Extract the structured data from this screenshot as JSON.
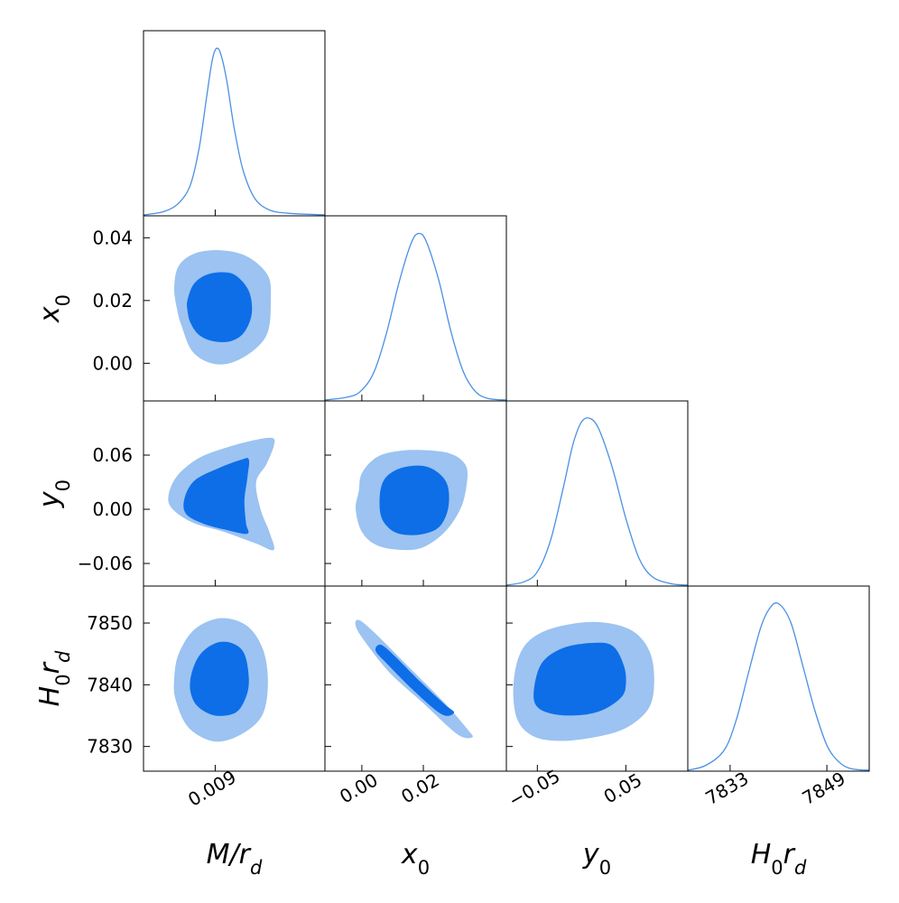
{
  "chart_data": {
    "type": "corner",
    "colors": {
      "line": "#4a90e2",
      "inner": "#0d6ee8",
      "outer": "#9cc3f1"
    },
    "params": [
      "M/r_d",
      "x_0",
      "y_0",
      "H_0 r_d"
    ],
    "axis_labels": {
      "x": [
        {
          "base": "M/r",
          "sub": "d",
          "tail": ""
        },
        {
          "base": "x",
          "sub": "0",
          "tail": ""
        },
        {
          "base": "y",
          "sub": "0",
          "tail": ""
        },
        {
          "base": "H",
          "sub": "0",
          "mid": "r",
          "sub2": "d"
        }
      ],
      "y": [
        null,
        {
          "base": "x",
          "sub": "0"
        },
        {
          "base": "y",
          "sub": "0"
        },
        {
          "base": "H",
          "sub": "0",
          "mid": "r",
          "sub2": "d"
        }
      ]
    },
    "ranges": [
      [
        0.0041,
        0.0165
      ],
      [
        -0.012,
        0.047
      ],
      [
        -0.085,
        0.12
      ],
      [
        7826,
        7856
      ]
    ],
    "x_ticks": [
      {
        "values": [
          0.009
        ],
        "labels": [
          "0.009"
        ]
      },
      {
        "values": [
          0.0,
          0.02
        ],
        "labels": [
          "0.00",
          "0.02"
        ]
      },
      {
        "values": [
          -0.05,
          0.05
        ],
        "labels": [
          "−0.05",
          "0.05"
        ]
      },
      {
        "values": [
          7833,
          7849
        ],
        "labels": [
          "7833",
          "7849"
        ]
      }
    ],
    "y_ticks": [
      null,
      {
        "values": [
          0.0,
          0.02,
          0.04
        ],
        "labels": [
          "0.00",
          "0.02",
          "0.04"
        ]
      },
      {
        "values": [
          -0.06,
          0.0,
          0.06
        ],
        "labels": [
          "−0.06",
          "0.00",
          "0.06"
        ]
      },
      {
        "values": [
          7830,
          7840,
          7850
        ],
        "labels": [
          "7830",
          "7840",
          "7850"
        ]
      }
    ],
    "marginals": [
      {
        "param": "M/r_d",
        "x": [
          0.0041,
          0.0055,
          0.0065,
          0.0073,
          0.0079,
          0.0084,
          0.0088,
          0.0091,
          0.0094,
          0.0098,
          0.0103,
          0.0109,
          0.0117,
          0.0127,
          0.014,
          0.0165
        ],
        "y": [
          0.0,
          0.02,
          0.07,
          0.18,
          0.4,
          0.7,
          0.93,
          1.0,
          0.96,
          0.8,
          0.52,
          0.27,
          0.1,
          0.03,
          0.01,
          0.0
        ]
      },
      {
        "param": "x_0",
        "x": [
          -0.012,
          -0.004,
          0.0,
          0.004,
          0.008,
          0.012,
          0.016,
          0.0185,
          0.021,
          0.025,
          0.029,
          0.033,
          0.037,
          0.041,
          0.047
        ],
        "y": [
          0.0,
          0.02,
          0.06,
          0.17,
          0.4,
          0.7,
          0.94,
          1.0,
          0.95,
          0.72,
          0.41,
          0.17,
          0.05,
          0.01,
          0.0
        ]
      },
      {
        "param": "y_0",
        "x": [
          -0.085,
          -0.065,
          -0.05,
          -0.035,
          -0.02,
          -0.01,
          0.0,
          0.01,
          0.02,
          0.035,
          0.05,
          0.065,
          0.08,
          0.1,
          0.12
        ],
        "y": [
          0.0,
          0.02,
          0.08,
          0.27,
          0.6,
          0.84,
          0.98,
          1.0,
          0.93,
          0.7,
          0.4,
          0.16,
          0.05,
          0.01,
          0.0
        ]
      },
      {
        "param": "H_0 r_d",
        "x": [
          7826,
          7829,
          7832,
          7834,
          7836,
          7838,
          7839.5,
          7841,
          7843,
          7845,
          7847,
          7849,
          7851,
          7853,
          7856
        ],
        "y": [
          0.0,
          0.03,
          0.12,
          0.3,
          0.58,
          0.85,
          0.97,
          1.0,
          0.89,
          0.63,
          0.36,
          0.15,
          0.05,
          0.01,
          0.0
        ]
      }
    ],
    "contours": [
      {
        "x_param": "M/r_d",
        "y_param": "x_0",
        "outer": [
          [
            0.0067,
            0.012
          ],
          [
            0.0074,
            0.004
          ],
          [
            0.0086,
            0.0002
          ],
          [
            0.01,
            0.0
          ],
          [
            0.0116,
            0.004
          ],
          [
            0.0126,
            0.01
          ],
          [
            0.0128,
            0.02
          ],
          [
            0.0126,
            0.028
          ],
          [
            0.0112,
            0.034
          ],
          [
            0.0094,
            0.036
          ],
          [
            0.0076,
            0.035
          ],
          [
            0.0065,
            0.031
          ],
          [
            0.0062,
            0.024
          ],
          [
            0.0064,
            0.017
          ]
        ],
        "inner": [
          [
            0.0073,
            0.013
          ],
          [
            0.0079,
            0.009
          ],
          [
            0.0089,
            0.007
          ],
          [
            0.0101,
            0.0071
          ],
          [
            0.011,
            0.01
          ],
          [
            0.0115,
            0.016
          ],
          [
            0.0113,
            0.023
          ],
          [
            0.0104,
            0.028
          ],
          [
            0.0094,
            0.029
          ],
          [
            0.0083,
            0.028
          ],
          [
            0.0075,
            0.025
          ],
          [
            0.0071,
            0.02
          ],
          [
            0.0071,
            0.017
          ]
        ]
      },
      {
        "x_param": "M/r_d",
        "y_param": "y_0",
        "outer": [
          [
            0.0064,
            0.037
          ],
          [
            0.0078,
            0.056
          ],
          [
            0.0095,
            0.067
          ],
          [
            0.0115,
            0.076
          ],
          [
            0.0129,
            0.079
          ],
          [
            0.013,
            0.07
          ],
          [
            0.0125,
            0.05
          ],
          [
            0.0118,
            0.03
          ],
          [
            0.0121,
            0.0
          ],
          [
            0.0127,
            -0.025
          ],
          [
            0.013,
            -0.045
          ],
          [
            0.0118,
            -0.038
          ],
          [
            0.0096,
            -0.025
          ],
          [
            0.0075,
            -0.015
          ],
          [
            0.0061,
            0.0
          ],
          [
            0.0058,
            0.015
          ]
        ],
        "inner": [
          [
            0.0076,
            0.032
          ],
          [
            0.0093,
            0.046
          ],
          [
            0.0108,
            0.055
          ],
          [
            0.0113,
            0.055
          ],
          [
            0.0112,
            0.035
          ],
          [
            0.011,
            0.01
          ],
          [
            0.0111,
            -0.015
          ],
          [
            0.0112,
            -0.027
          ],
          [
            0.0098,
            -0.023
          ],
          [
            0.0082,
            -0.016
          ],
          [
            0.007,
            -0.005
          ],
          [
            0.0069,
            0.012
          ]
        ]
      },
      {
        "x_param": "M/r_d",
        "y_param": "H_0 r_d",
        "outer": [
          [
            0.0063,
            7837.5
          ],
          [
            0.0072,
            7833
          ],
          [
            0.009,
            7830.8
          ],
          [
            0.0108,
            7832
          ],
          [
            0.0122,
            7835
          ],
          [
            0.0126,
            7840
          ],
          [
            0.0123,
            7845.5
          ],
          [
            0.0112,
            7849.5
          ],
          [
            0.0094,
            7850.8
          ],
          [
            0.0076,
            7849
          ],
          [
            0.0065,
            7845
          ],
          [
            0.0062,
            7841
          ]
        ],
        "inner": [
          [
            0.0073,
            7839
          ],
          [
            0.0078,
            7836.5
          ],
          [
            0.009,
            7835
          ],
          [
            0.0104,
            7835.5
          ],
          [
            0.0111,
            7838
          ],
          [
            0.0113,
            7841
          ],
          [
            0.011,
            7845
          ],
          [
            0.0102,
            7846.7
          ],
          [
            0.0091,
            7846.8
          ],
          [
            0.008,
            7845
          ],
          [
            0.0074,
            7842
          ]
        ]
      },
      {
        "x_param": "x_0",
        "y_param": "y_0",
        "outer": [
          [
            0.0,
            0.04
          ],
          [
            0.005,
            0.058
          ],
          [
            0.013,
            0.065
          ],
          [
            0.023,
            0.065
          ],
          [
            0.03,
            0.06
          ],
          [
            0.034,
            0.047
          ],
          [
            0.034,
            0.025
          ],
          [
            0.032,
            0.0
          ],
          [
            0.027,
            -0.025
          ],
          [
            0.02,
            -0.042
          ],
          [
            0.013,
            -0.045
          ],
          [
            0.005,
            -0.04
          ],
          [
            0.0,
            -0.025
          ],
          [
            -0.002,
            0.0
          ],
          [
            -0.001,
            0.02
          ]
        ],
        "inner": [
          [
            0.006,
            0.02
          ],
          [
            0.008,
            0.036
          ],
          [
            0.013,
            0.046
          ],
          [
            0.02,
            0.048
          ],
          [
            0.025,
            0.04
          ],
          [
            0.028,
            0.025
          ],
          [
            0.028,
            0.0
          ],
          [
            0.025,
            -0.02
          ],
          [
            0.019,
            -0.028
          ],
          [
            0.012,
            -0.027
          ],
          [
            0.008,
            -0.018
          ],
          [
            0.006,
            -0.004
          ]
        ]
      },
      {
        "x_param": "x_0",
        "y_param": "H_0 r_d",
        "outer": [
          [
            -0.001,
            7850.5
          ],
          [
            0.004,
            7848.5
          ],
          [
            0.015,
            7843
          ],
          [
            0.027,
            7837
          ],
          [
            0.034,
            7833
          ],
          [
            0.036,
            7831.5
          ],
          [
            0.031,
            7832
          ],
          [
            0.02,
            7837
          ],
          [
            0.009,
            7842
          ],
          [
            0.001,
            7847
          ],
          [
            -0.002,
            7849.5
          ]
        ],
        "inner": [
          [
            0.006,
            7846.5
          ],
          [
            0.01,
            7845
          ],
          [
            0.019,
            7840.5
          ],
          [
            0.027,
            7836.8
          ],
          [
            0.03,
            7835.5
          ],
          [
            0.026,
            7835.2
          ],
          [
            0.017,
            7839
          ],
          [
            0.008,
            7843.5
          ],
          [
            0.0045,
            7845.5
          ]
        ]
      },
      {
        "x_param": "y_0",
        "y_param": "H_0 r_d",
        "outer": [
          [
            -0.077,
            7840
          ],
          [
            -0.073,
            7834.5
          ],
          [
            -0.055,
            7831.7
          ],
          [
            -0.025,
            7830.9
          ],
          [
            0.015,
            7831.5
          ],
          [
            0.05,
            7833
          ],
          [
            0.075,
            7836
          ],
          [
            0.082,
            7840
          ],
          [
            0.078,
            7845
          ],
          [
            0.06,
            7848.5
          ],
          [
            0.03,
            7850
          ],
          [
            -0.005,
            7850
          ],
          [
            -0.045,
            7848.5
          ],
          [
            -0.068,
            7845.5
          ]
        ],
        "inner": [
          [
            -0.054,
            7839
          ],
          [
            -0.05,
            7836.4
          ],
          [
            -0.03,
            7835.2
          ],
          [
            0.0,
            7835.1
          ],
          [
            0.025,
            7836
          ],
          [
            0.045,
            7838
          ],
          [
            0.05,
            7840
          ],
          [
            0.048,
            7843
          ],
          [
            0.036,
            7846.2
          ],
          [
            0.015,
            7846.8
          ],
          [
            -0.02,
            7846
          ],
          [
            -0.045,
            7843.5
          ]
        ]
      }
    ]
  }
}
